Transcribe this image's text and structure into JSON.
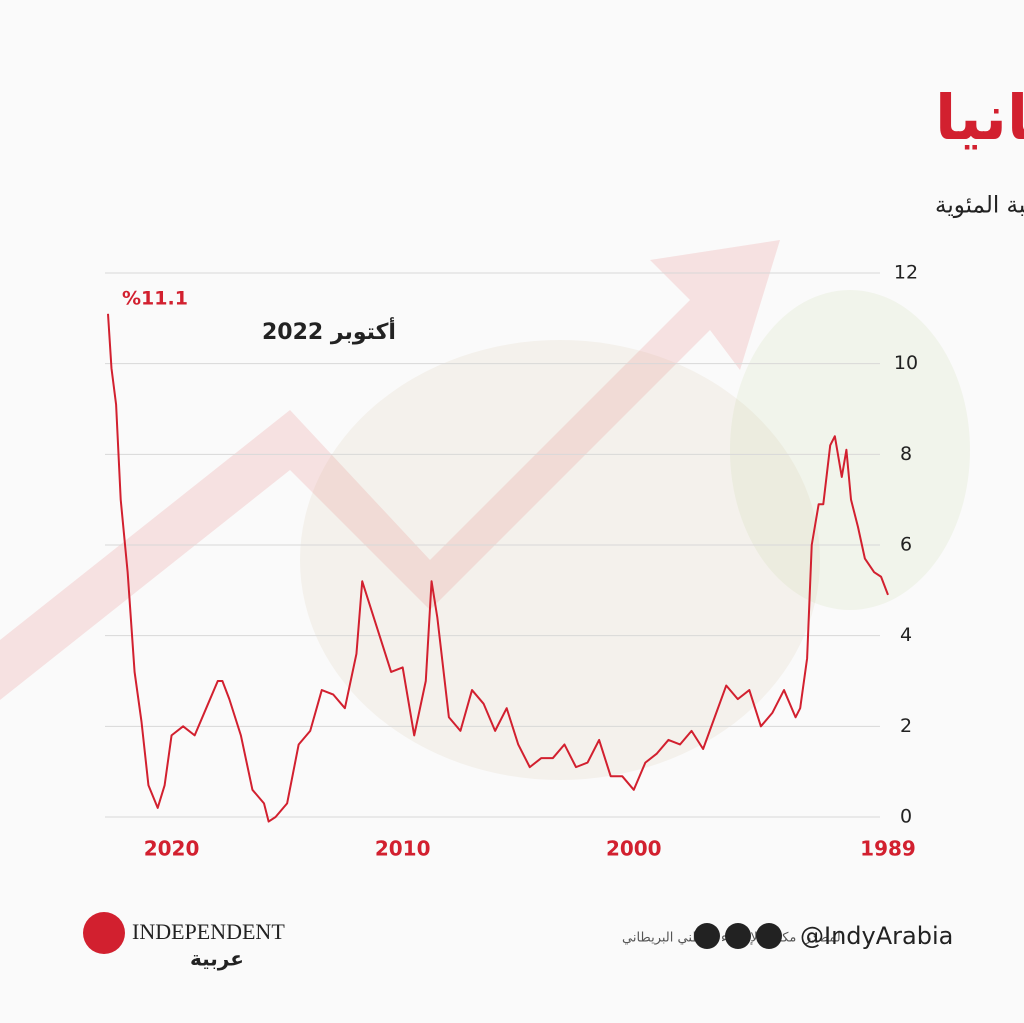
{
  "chart_data": {
    "type": "line",
    "title": "التضخم في بريطانيا",
    "subtitle": "مؤشر أسعار المستهلك المعدل السنوي بالنسبة المئوية",
    "annotations": [
      "%11.1",
      "أكتوبر 2022"
    ],
    "x": [
      1989.0,
      1989.3,
      1989.6,
      1990.0,
      1990.3,
      1990.6,
      1990.8,
      1991.0,
      1991.3,
      1991.5,
      1991.8,
      1992.0,
      1992.3,
      1992.5,
      1992.8,
      1993.0,
      1993.5,
      1994.0,
      1994.5,
      1995.0,
      1995.5,
      1996.0,
      1996.5,
      1997.0,
      1997.5,
      1998.0,
      1998.5,
      1999.0,
      1999.5,
      2000.0,
      2000.5,
      2001.0,
      2001.5,
      2002.0,
      2002.5,
      2003.0,
      2003.5,
      2004.0,
      2004.5,
      2005.0,
      2005.5,
      2006.0,
      2006.5,
      2007.0,
      2007.5,
      2008.0,
      2008.5,
      2008.75,
      2009.0,
      2009.5,
      2010.0,
      2010.5,
      2011.0,
      2011.75,
      2012.0,
      2012.5,
      2013.0,
      2013.5,
      2014.0,
      2014.5,
      2015.0,
      2015.5,
      2015.8,
      2016.0,
      2016.5,
      2017.0,
      2017.5,
      2017.8,
      2018.0,
      2018.5,
      2019.0,
      2019.5,
      2020.0,
      2020.3,
      2020.6,
      2021.0,
      2021.3,
      2021.6,
      2021.9,
      2022.2,
      2022.4,
      2022.6,
      2022.75
    ],
    "series": [
      {
        "color": "#d2202f",
        "values": [
          4.9,
          5.3,
          5.4,
          5.7,
          6.4,
          7.0,
          8.1,
          7.5,
          8.4,
          8.2,
          6.9,
          6.9,
          6.0,
          3.5,
          2.4,
          2.2,
          2.8,
          2.3,
          2.0,
          2.8,
          2.6,
          2.9,
          2.2,
          1.5,
          1.9,
          1.6,
          1.7,
          1.4,
          1.2,
          0.6,
          0.9,
          0.9,
          1.7,
          1.2,
          1.1,
          1.6,
          1.3,
          1.3,
          1.1,
          1.6,
          2.4,
          1.9,
          2.5,
          2.8,
          1.9,
          2.2,
          4.4,
          5.2,
          3.0,
          1.8,
          3.3,
          3.2,
          4.0,
          5.2,
          3.6,
          2.4,
          2.7,
          2.8,
          1.9,
          1.6,
          0.3,
          0.0,
          -0.1,
          0.3,
          0.6,
          1.8,
          2.6,
          3.0,
          3.0,
          2.4,
          1.8,
          2.0,
          1.8,
          0.7,
          0.2,
          0.7,
          2.1,
          3.2,
          5.4,
          7.0,
          9.1,
          9.9,
          11.1
        ]
      }
    ],
    "xlim": [
      2022.75,
      1989
    ],
    "xticks": [
      1989,
      2000,
      2010,
      2020
    ],
    "ylim": [
      0,
      12
    ],
    "yticks": [
      0,
      2,
      4,
      6,
      8,
      10,
      12
    ],
    "grid": true
  },
  "footer": {
    "source": "المصدر: مكتب الإحصاء الوطني البريطاني",
    "handle": "@IndyArabia",
    "brand": "INDEPENDENT",
    "brand_sub": "عربية"
  }
}
